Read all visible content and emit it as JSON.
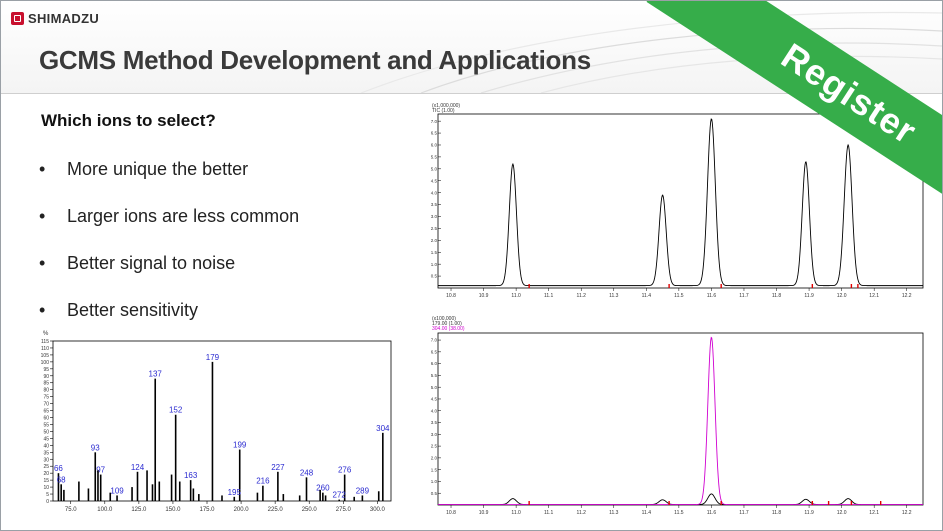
{
  "brand": {
    "logo_text": "SHIMADZU",
    "logo_icon": "shimadzu-logo-icon"
  },
  "title": "GCMS Method Development and Applications",
  "register": {
    "label": "Register",
    "color": "#36ad4a"
  },
  "content": {
    "heading": "Which ions to select?",
    "bullets": [
      "More unique the better",
      "Larger ions are less common",
      "Better signal to noise",
      "Better sensitivity"
    ]
  },
  "chart_data": [
    {
      "type": "bar",
      "name_hint": "mass-spectrum",
      "ylabel": "%",
      "xlim": [
        62,
        310
      ],
      "ylim": [
        0,
        115
      ],
      "x_ticks": [
        75.0,
        100.0,
        125.0,
        150.0,
        175.0,
        200.0,
        225.0,
        250.0,
        275.0,
        300.0
      ],
      "y_ticks": [
        0,
        5,
        10,
        15,
        20,
        25,
        30,
        35,
        40,
        45,
        50,
        55,
        60,
        65,
        70,
        75,
        80,
        85,
        90,
        95,
        100,
        105,
        110,
        115
      ],
      "peaks": [
        {
          "x": 66,
          "y": 20,
          "label": "66"
        },
        {
          "x": 68,
          "y": 12,
          "label": "68"
        },
        {
          "x": 93,
          "y": 35,
          "label": "93"
        },
        {
          "x": 97,
          "y": 19,
          "label": "97"
        },
        {
          "x": 109,
          "y": 4,
          "label": "109"
        },
        {
          "x": 124,
          "y": 21,
          "label": "124"
        },
        {
          "x": 137,
          "y": 88,
          "label": "137"
        },
        {
          "x": 152,
          "y": 62,
          "label": "152"
        },
        {
          "x": 163,
          "y": 15,
          "label": "163"
        },
        {
          "x": 179,
          "y": 100,
          "label": "179"
        },
        {
          "x": 199,
          "y": 37,
          "label": "199"
        },
        {
          "x": 195,
          "y": 3,
          "label": "195"
        },
        {
          "x": 216,
          "y": 11,
          "label": "216"
        },
        {
          "x": 227,
          "y": 21,
          "label": "227"
        },
        {
          "x": 248,
          "y": 17,
          "label": "248"
        },
        {
          "x": 260,
          "y": 6,
          "label": "260"
        },
        {
          "x": 276,
          "y": 19,
          "label": "276"
        },
        {
          "x": 272,
          "y": 1,
          "label": "272"
        },
        {
          "x": 289,
          "y": 4,
          "label": "289"
        },
        {
          "x": 304,
          "y": 49,
          "label": "304"
        },
        {
          "x": 70,
          "y": 8,
          "label": ""
        },
        {
          "x": 81,
          "y": 14,
          "label": ""
        },
        {
          "x": 88,
          "y": 9,
          "label": ""
        },
        {
          "x": 95,
          "y": 22,
          "label": ""
        },
        {
          "x": 104,
          "y": 6,
          "label": ""
        },
        {
          "x": 120,
          "y": 10,
          "label": ""
        },
        {
          "x": 131,
          "y": 22,
          "label": ""
        },
        {
          "x": 135,
          "y": 12,
          "label": ""
        },
        {
          "x": 140,
          "y": 14,
          "label": ""
        },
        {
          "x": 149,
          "y": 19,
          "label": ""
        },
        {
          "x": 155,
          "y": 14,
          "label": ""
        },
        {
          "x": 165,
          "y": 9,
          "label": ""
        },
        {
          "x": 169,
          "y": 5,
          "label": ""
        },
        {
          "x": 186,
          "y": 4,
          "label": ""
        },
        {
          "x": 212,
          "y": 6,
          "label": ""
        },
        {
          "x": 231,
          "y": 5,
          "label": ""
        },
        {
          "x": 243,
          "y": 4,
          "label": ""
        },
        {
          "x": 258,
          "y": 8,
          "label": ""
        },
        {
          "x": 262,
          "y": 4,
          "label": ""
        },
        {
          "x": 283,
          "y": 3,
          "label": ""
        },
        {
          "x": 301,
          "y": 7,
          "label": ""
        }
      ]
    },
    {
      "type": "line",
      "name_hint": "total-ion-chromatogram",
      "header_lines": [
        "(x1,000,000)",
        "TIC (1.00)"
      ],
      "xlim": [
        10.76,
        12.25
      ],
      "ylim": [
        0,
        7.3
      ],
      "x_ticks": [
        10.8,
        10.9,
        11.0,
        11.1,
        11.2,
        11.3,
        11.4,
        11.5,
        11.6,
        11.7,
        11.8,
        11.9,
        12.0,
        12.1,
        12.2
      ],
      "y_ticks": [
        0.5,
        1.0,
        1.5,
        2.0,
        2.5,
        3.0,
        3.5,
        4.0,
        4.5,
        5.0,
        5.5,
        6.0,
        6.5,
        7.0
      ],
      "baseline": 0.1,
      "peaks": [
        {
          "rt": 10.99,
          "height": 5.1,
          "width": 0.011
        },
        {
          "rt": 11.45,
          "height": 3.8,
          "width": 0.011
        },
        {
          "rt": 11.6,
          "height": 7.0,
          "width": 0.012
        },
        {
          "rt": 11.89,
          "height": 5.2,
          "width": 0.011
        },
        {
          "rt": 12.02,
          "height": 5.9,
          "width": 0.012
        }
      ],
      "markers": [
        11.04,
        11.47,
        11.63,
        11.91,
        12.03,
        12.05
      ],
      "line_color": "#000000",
      "marker_color": "#e00000"
    },
    {
      "type": "line",
      "name_hint": "extracted-ion-chromatogram",
      "header_lines": [
        "(x100,000)",
        "179.00 (1.00)",
        "304.00 (38.00)"
      ],
      "xlim": [
        10.76,
        12.25
      ],
      "ylim": [
        0,
        7.3
      ],
      "x_ticks": [
        10.8,
        10.9,
        11.0,
        11.1,
        11.2,
        11.3,
        11.4,
        11.5,
        11.6,
        11.7,
        11.8,
        11.9,
        12.0,
        12.1,
        12.2
      ],
      "y_ticks": [
        0.5,
        1.0,
        1.5,
        2.0,
        2.5,
        3.0,
        3.5,
        4.0,
        4.5,
        5.0,
        5.5,
        6.0,
        6.5,
        7.0
      ],
      "y_tick_labels_hint": "scaled",
      "series": [
        {
          "name": "179.00 (1.00)",
          "color": "#000000",
          "peaks": [
            {
              "rt": 10.99,
              "height": 0.25
            },
            {
              "rt": 11.45,
              "height": 0.2
            },
            {
              "rt": 11.6,
              "height": 0.45
            },
            {
              "rt": 11.89,
              "height": 0.22
            },
            {
              "rt": 12.02,
              "height": 0.25
            }
          ]
        },
        {
          "name": "304.00 (38.00)",
          "color": "#d000d0",
          "peaks": [
            {
              "rt": 11.6,
              "height": 7.1
            }
          ]
        }
      ],
      "markers": [
        11.04,
        11.47,
        11.63,
        11.91,
        11.96,
        12.03,
        12.12
      ],
      "marker_color": "#e00000"
    }
  ]
}
